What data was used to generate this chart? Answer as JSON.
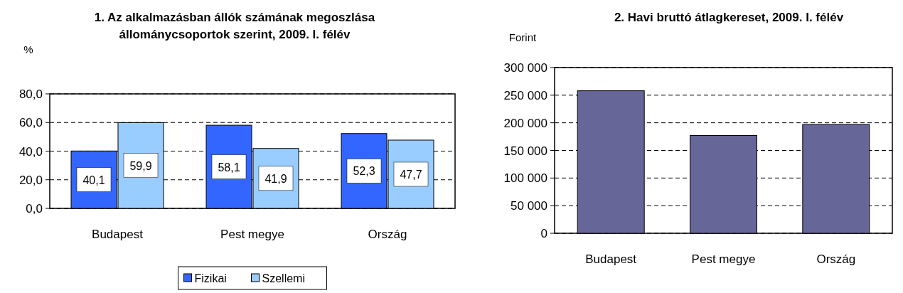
{
  "chart_data": [
    {
      "type": "bar",
      "title": "1. Az alkalmazásban állók számának megoszlása állománycsoportok szerint, 2009. I. félév",
      "ylabel": "%",
      "categories": [
        "Budapest",
        "Pest megye",
        "Ország"
      ],
      "series": [
        {
          "name": "Fizikai",
          "color": "#3366ff",
          "values": [
            40.1,
            58.1,
            52.3
          ],
          "value_labels": [
            "40,1",
            "58,1",
            "52,3"
          ]
        },
        {
          "name": "Szellemi",
          "color": "#99ccff",
          "values": [
            59.9,
            41.9,
            47.7
          ],
          "value_labels": [
            "59,9",
            "41,9",
            "47,7"
          ]
        }
      ],
      "ylim": [
        0,
        80
      ],
      "yticks": [
        {
          "value": 0,
          "label": "0,0"
        },
        {
          "value": 20,
          "label": "20,0"
        },
        {
          "value": 40,
          "label": "40,0"
        },
        {
          "value": 60,
          "label": "60,0"
        },
        {
          "value": 80,
          "label": "80,0"
        }
      ],
      "grid": "y",
      "legend": "bottom"
    },
    {
      "type": "bar",
      "title": "2. Havi bruttó átlagkereset, 2009. I. félév",
      "ylabel": "Forint",
      "categories": [
        "Budapest",
        "Pest megye",
        "Ország"
      ],
      "series": [
        {
          "color": "#666699",
          "values": [
            258000,
            177000,
            197000
          ]
        }
      ],
      "ylim": [
        0,
        300000
      ],
      "yticks": [
        {
          "value": 0,
          "label": "0"
        },
        {
          "value": 50000,
          "label": "50 000"
        },
        {
          "value": 100000,
          "label": "100 000"
        },
        {
          "value": 150000,
          "label": "150 000"
        },
        {
          "value": 200000,
          "label": "200 000"
        },
        {
          "value": 250000,
          "label": "250 000"
        },
        {
          "value": 300000,
          "label": "300 000"
        }
      ],
      "grid": "y"
    }
  ]
}
